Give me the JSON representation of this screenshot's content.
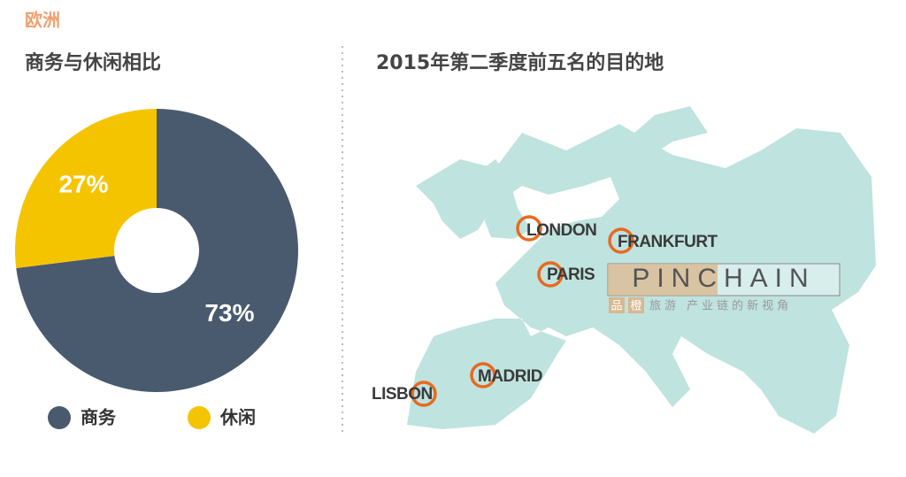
{
  "header": "欧洲",
  "chart_data": {
    "type": "pie",
    "title": "商务与休闲相比",
    "categories": [
      "商务",
      "休闲"
    ],
    "values": [
      73,
      27
    ],
    "value_labels": [
      "73%",
      "27%"
    ],
    "colors": [
      "#4a5a6e",
      "#f5c400"
    ],
    "donut": true
  },
  "map": {
    "title": "2015年第二季度前五名的目的地",
    "cities": [
      "LONDON",
      "FRANKFURT",
      "PARIS",
      "MADRID",
      "LISBON"
    ]
  },
  "watermark": {
    "brand": "PINCHAIN",
    "tag1": "品",
    "tag2": "橙",
    "tagline": "旅游 产业链的新视角"
  }
}
